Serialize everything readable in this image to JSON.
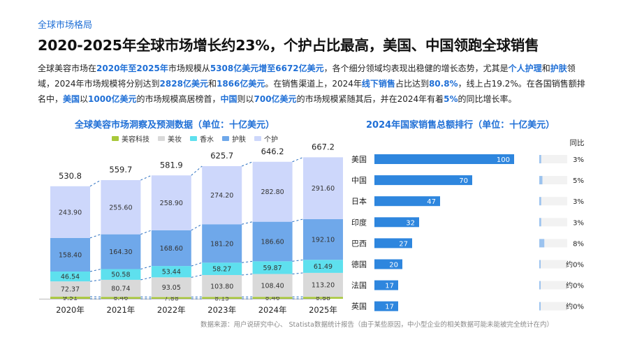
{
  "section_tag": "全球市场格局",
  "headline": "2020-2025年全球市场增长约23%，个护占比最高，美国、中国领跑全球销售",
  "summary": [
    {
      "t": "全球美容市场在",
      "hl": false
    },
    {
      "t": "2020年至2025年",
      "hl": true
    },
    {
      "t": "市场规模从",
      "hl": false
    },
    {
      "t": "5308亿美元增至6672亿美元",
      "hl": true
    },
    {
      "t": "，各个细分领域均表现出稳健的增长态势，尤其是",
      "hl": false
    },
    {
      "t": "个人护理",
      "hl": true
    },
    {
      "t": "和",
      "hl": false
    },
    {
      "t": "护肤",
      "hl": true
    },
    {
      "t": "领域，2024年市场规模将分别达到",
      "hl": false
    },
    {
      "t": "2828亿美元",
      "hl": true
    },
    {
      "t": "和",
      "hl": false
    },
    {
      "t": "1866亿美元",
      "hl": true
    },
    {
      "t": "。在销售渠道上，2024年",
      "hl": false
    },
    {
      "t": "线下销售",
      "hl": true
    },
    {
      "t": "占比达到",
      "hl": false
    },
    {
      "t": "80.8%",
      "hl": true
    },
    {
      "t": "，线上占19.2%。在各国销售额排名中，",
      "hl": false
    },
    {
      "t": "美国",
      "hl": true
    },
    {
      "t": "以",
      "hl": false
    },
    {
      "t": "1000亿美元",
      "hl": true
    },
    {
      "t": "的市场规模高居榜首，",
      "hl": false
    },
    {
      "t": "中国",
      "hl": true
    },
    {
      "t": "则以",
      "hl": false
    },
    {
      "t": "700亿美元",
      "hl": true
    },
    {
      "t": "的市场规模紧随其后，并在2024年有着",
      "hl": false
    },
    {
      "t": "5%",
      "hl": true
    },
    {
      "t": "的同比增长率。",
      "hl": false
    }
  ],
  "source_note": "数据来源：用户说研究中心、 Statista数据统计报告（由于某些原因，中小型企业的相关数据可能未能被完全统计在内）",
  "chart_data": [
    {
      "type": "bar",
      "stacked": true,
      "title": "全球美容市场洞察及预测数据（单位：十亿美元）",
      "categories": [
        "2020年",
        "2021年",
        "2022年",
        "2023年",
        "2024年",
        "2025年"
      ],
      "series": [
        {
          "name": "美容科技",
          "color": "#a8c83a",
          "values": [
            9.51,
            8.46,
            7.88,
            8.15,
            8.46,
            8.88
          ],
          "labels": [
            "9.51",
            "8.46",
            "7.88",
            "8.15",
            "8.46",
            "8.88"
          ]
        },
        {
          "name": "美妆",
          "color": "#d9d9d9",
          "values": [
            72.37,
            80.74,
            93.05,
            103.8,
            108.4,
            113.2
          ],
          "labels": [
            "72.37",
            "80.74",
            "93.05",
            "103.80",
            "108.40",
            "113.20"
          ]
        },
        {
          "name": "香水",
          "color": "#5ee0ee",
          "values": [
            46.54,
            50.58,
            53.44,
            58.27,
            59.87,
            61.49
          ],
          "labels": [
            "46.54",
            "50.58",
            "53.44",
            "58.27",
            "59.87",
            "61.49"
          ]
        },
        {
          "name": "护肤",
          "color": "#6fa8ea",
          "values": [
            158.4,
            164.3,
            168.6,
            181.2,
            186.6,
            192.1
          ],
          "labels": [
            "158.40",
            "164.30",
            "168.60",
            "181.20",
            "186.60",
            "192.10"
          ]
        },
        {
          "name": "个护",
          "color": "#cdd7fb",
          "values": [
            243.9,
            255.6,
            258.9,
            274.2,
            282.8,
            291.6
          ],
          "labels": [
            "243.90",
            "255.60",
            "258.90",
            "274.20",
            "282.80",
            "291.60"
          ]
        }
      ],
      "totals": [
        "530.8",
        "559.7",
        "581.9",
        "625.7",
        "646.2",
        "667.2"
      ],
      "total_values": [
        530.8,
        559.7,
        581.9,
        625.7,
        646.2,
        667.2
      ],
      "legend_position": "top",
      "connector_lines": "dashed"
    },
    {
      "type": "bar",
      "orientation": "horizontal",
      "title": "2024年国家销售总额排行（单位：十亿美元）",
      "categories": [
        "美国",
        "中国",
        "日本",
        "印度",
        "巴西",
        "德国",
        "法国",
        "英国"
      ],
      "values": [
        100,
        70,
        47,
        32,
        27,
        20,
        17,
        17
      ],
      "bar_color": "#2e86de",
      "yoy_header": "同比",
      "yoy_labels": [
        "3%",
        "5%",
        "3%",
        "3%",
        "8%",
        "约0%",
        "约0%",
        "约0%"
      ],
      "yoy_values": [
        3,
        5,
        3,
        3,
        8,
        0,
        0,
        0
      ]
    }
  ]
}
